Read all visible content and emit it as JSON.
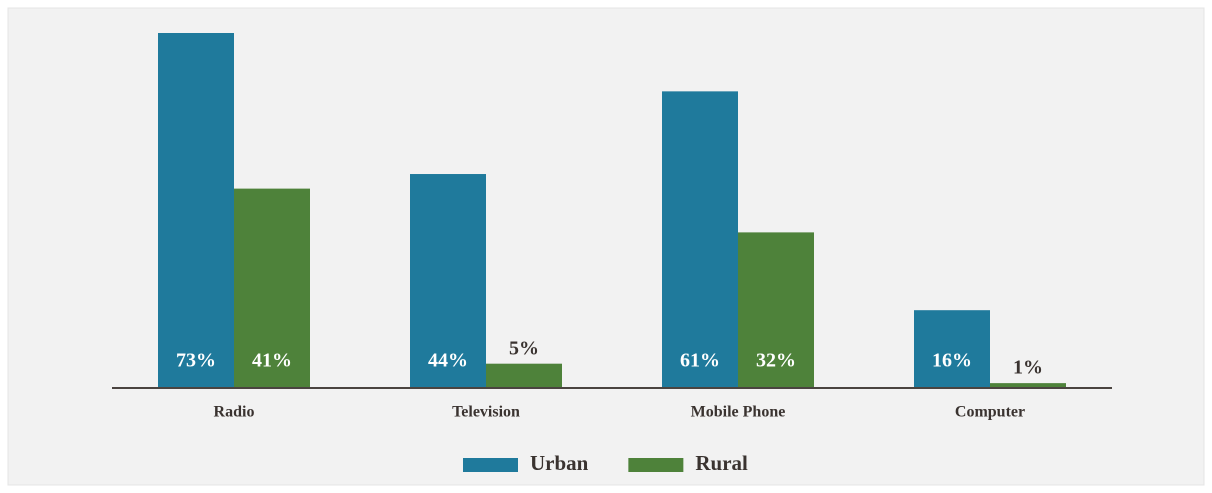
{
  "chart_data": {
    "type": "bar",
    "categories": [
      "Radio",
      "Television",
      "Mobile Phone",
      "Computer"
    ],
    "series": [
      {
        "name": "Urban",
        "color": "#1f7a9c",
        "values": [
          73,
          44,
          61,
          16
        ],
        "value_labels": [
          "73%",
          "44%",
          "61%",
          "16%"
        ]
      },
      {
        "name": "Rural",
        "color": "#4e823a",
        "values": [
          41,
          5,
          32,
          1
        ],
        "value_labels": [
          "41%",
          "5%",
          "32%",
          "1%"
        ]
      }
    ]
  }
}
